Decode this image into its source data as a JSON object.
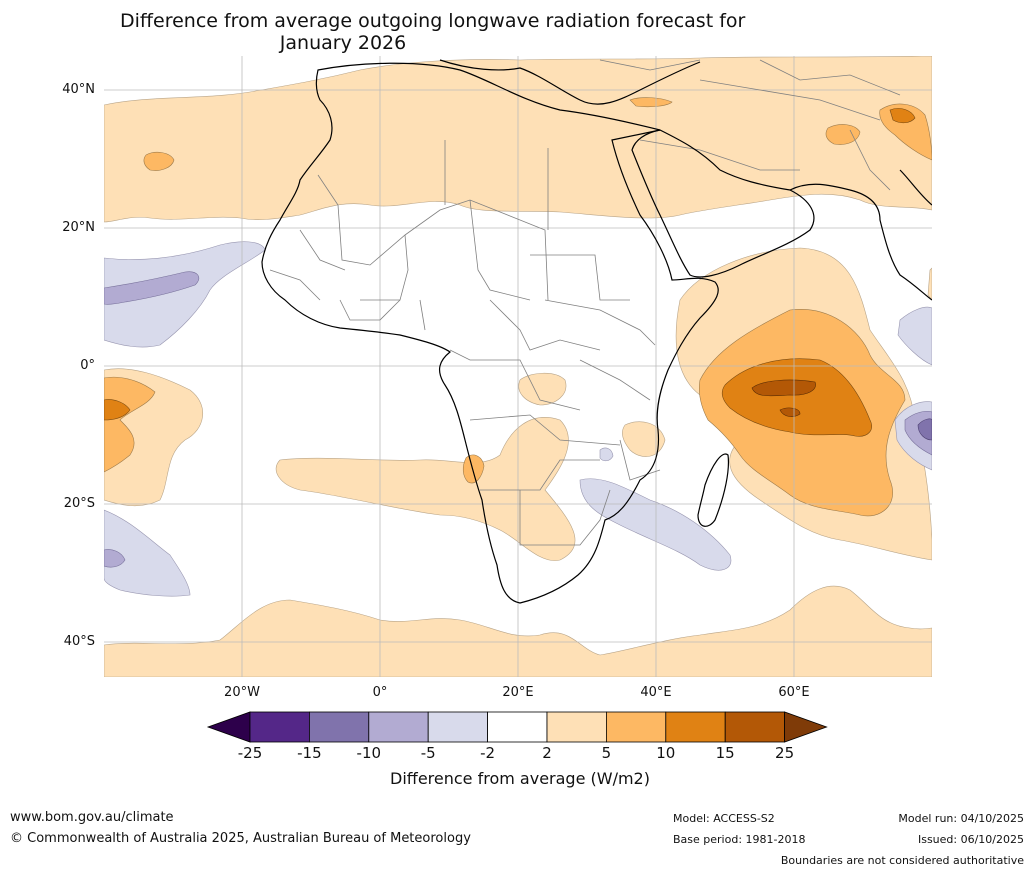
{
  "title_line1": "Difference from average outgoing longwave radiation forecast for",
  "title_line2": "January 2026",
  "latitude_labels": [
    "40°N",
    "20°N",
    "0°",
    "20°S",
    "40°S"
  ],
  "longitude_labels": [
    "20°W",
    "0°",
    "20°E",
    "40°E",
    "60°E"
  ],
  "colorbar": {
    "title": "Difference from average (W/m2)",
    "ticks": [
      "-25",
      "-15",
      "-10",
      "-5",
      "-2",
      "2",
      "5",
      "10",
      "15",
      "25"
    ],
    "colors": {
      "below_min": "#2d004b",
      "bins": [
        "#542788",
        "#8073ac",
        "#b2abd2",
        "#d8daeb",
        "#ffffff",
        "#fee0b6",
        "#fdb863",
        "#e08214",
        "#b35806"
      ],
      "above_max": "#7f3b08"
    }
  },
  "footer": {
    "website": "www.bom.gov.au/climate",
    "copyright": "© Commonwealth of Australia 2025, Australian Bureau of Meteorology",
    "model": "Model: ACCESS-S2",
    "base_period": "Base period: 1981-2018",
    "model_run": "Model run: 04/10/2025",
    "issued": "Issued: 06/10/2025",
    "disclaimer": "Boundaries are not considered authoritative"
  }
}
